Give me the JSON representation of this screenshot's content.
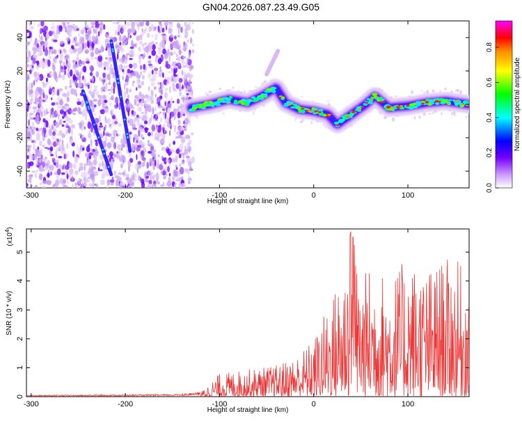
{
  "title": "GN04.2026.087.23.49.G05",
  "chart_data": [
    {
      "type": "heatmap",
      "xlabel": "Height of straight line (km)",
      "ylabel": "Frequency (Hz)",
      "xlim": [
        -305,
        165
      ],
      "ylim": [
        -50,
        50
      ],
      "xticks": [
        -300,
        -200,
        -100,
        0,
        100
      ],
      "yticks": [
        -40,
        -20,
        0,
        20,
        40
      ],
      "colorbar": {
        "label": "Normalized spectral amplitude",
        "range": [
          0.0,
          0.95
        ],
        "ticks": [
          0.0,
          0.2,
          0.4,
          0.6,
          0.8
        ],
        "colormap": [
          "#d9b8f5",
          "#7700ff",
          "#0000ff",
          "#00ffff",
          "#00ff00",
          "#ffff00",
          "#ff8800",
          "#ff0000",
          "#ff00ff"
        ]
      },
      "ridge": {
        "x": [
          -130,
          -110,
          -90,
          -70,
          -55,
          -40,
          -30,
          -15,
          0,
          15,
          25,
          40,
          55,
          65,
          80,
          100,
          120,
          140,
          165
        ],
        "y": [
          -2,
          0,
          3,
          1,
          5,
          10,
          1,
          -3,
          -4,
          -6,
          -12,
          -6,
          0,
          5,
          -2,
          -1,
          1,
          2,
          0
        ]
      },
      "streaks": [
        {
          "x": [
            -245,
            -215
          ],
          "y": [
            8,
            -42
          ]
        },
        {
          "x": [
            -215,
            -195
          ],
          "y": [
            38,
            -28
          ]
        }
      ],
      "spur": {
        "x": [
          -50,
          -38
        ],
        "y": [
          18,
          32
        ]
      }
    },
    {
      "type": "line",
      "xlabel": "Height of straight line (km)",
      "ylabel": "SNR (10 * v/v)",
      "yscale_label": "(x10",
      "yscale_exp": "4",
      "yscale_close": ")",
      "xlim": [
        -305,
        165
      ],
      "ylim": [
        0,
        5.8
      ],
      "xticks": [
        -300,
        -200,
        -100,
        0,
        100
      ],
      "yticks": [
        0,
        1,
        2,
        3,
        4,
        5
      ],
      "color": "#ee3333",
      "envelope": {
        "x": [
          -305,
          -150,
          -120,
          -100,
          -80,
          -60,
          -40,
          -20,
          0,
          10,
          20,
          30,
          40,
          50,
          60,
          80,
          100,
          120,
          140,
          160,
          165
        ],
        "y": [
          0.05,
          0.08,
          0.15,
          0.8,
          0.9,
          1.0,
          1.1,
          1.4,
          2.0,
          2.8,
          3.6,
          4.3,
          5.8,
          4.1,
          4.6,
          4.2,
          4.8,
          4.4,
          4.8,
          4.6,
          3.0
        ]
      }
    }
  ]
}
